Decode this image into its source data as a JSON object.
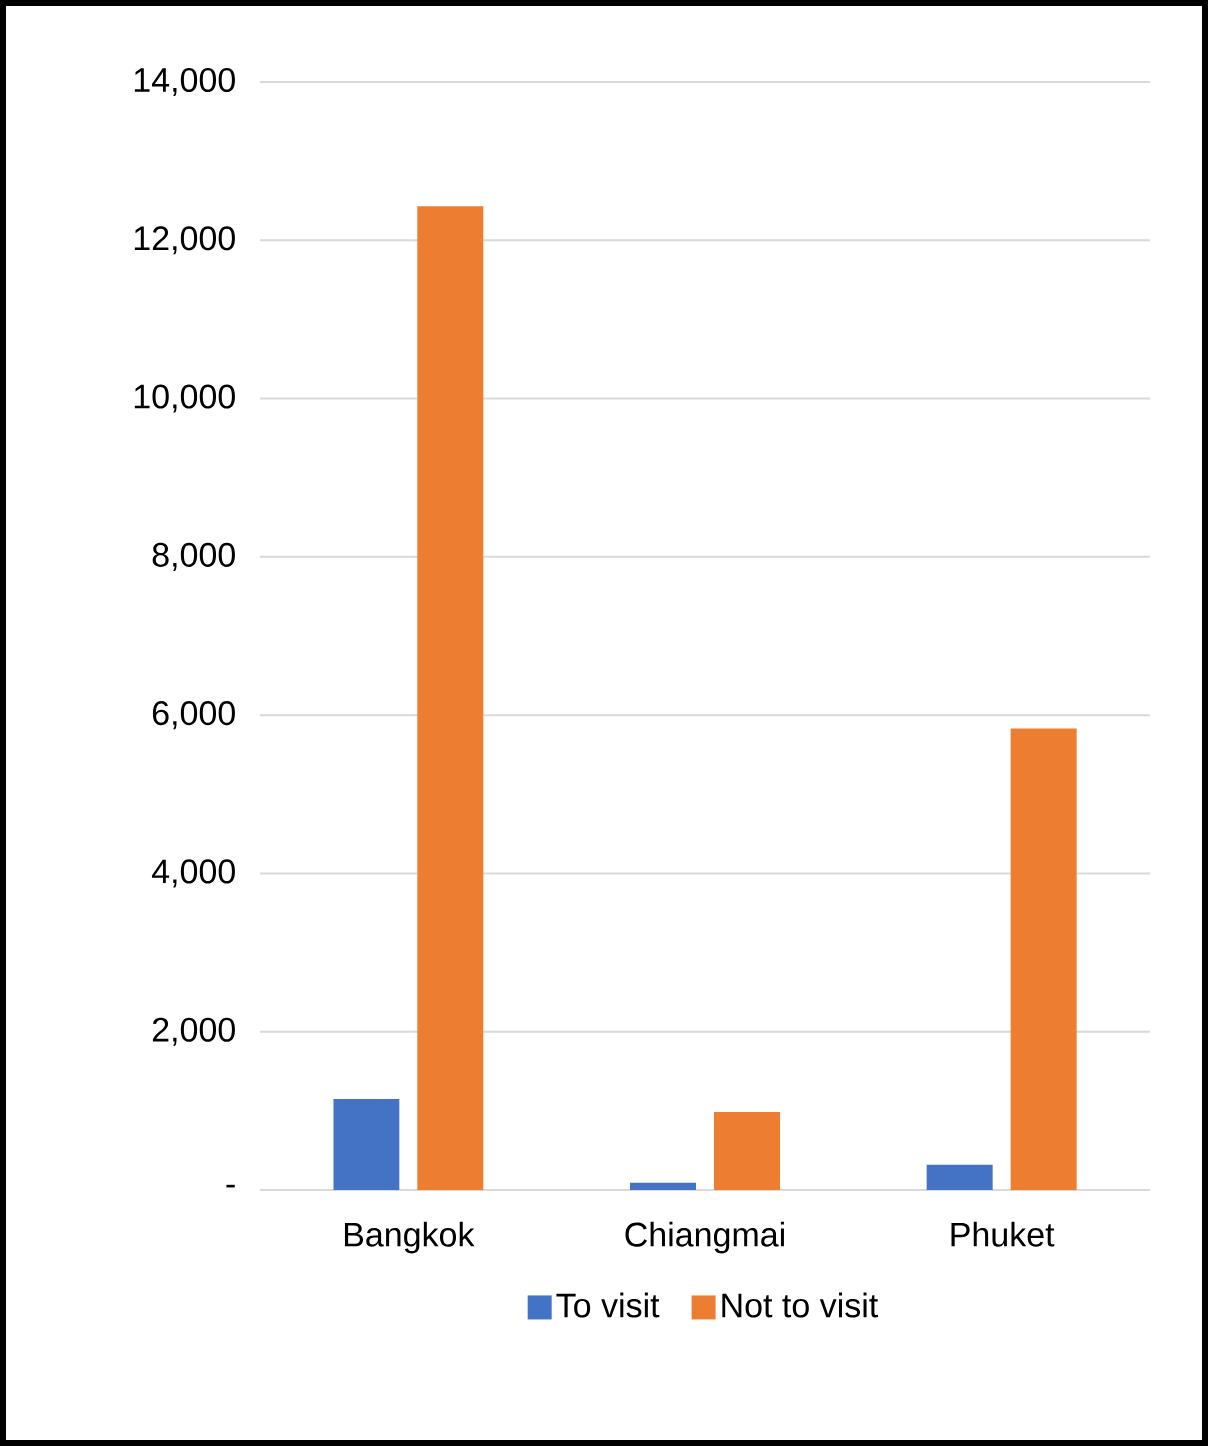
{
  "chart_data": {
    "type": "bar",
    "categories": [
      "Bangkok",
      "Chiangmai",
      "Phuket"
    ],
    "series": [
      {
        "name": "To visit",
        "color": "#4472c4",
        "values": [
          1150,
          90,
          320
        ]
      },
      {
        "name": "Not to visit",
        "color": "#ed7d31",
        "values": [
          12430,
          985,
          5830
        ]
      }
    ],
    "ylim": [
      0,
      14000
    ],
    "yticks": [
      {
        "value": 0,
        "label": "-"
      },
      {
        "value": 2000,
        "label": "2,000"
      },
      {
        "value": 4000,
        "label": "4,000"
      },
      {
        "value": 6000,
        "label": "6,000"
      },
      {
        "value": 8000,
        "label": "8,000"
      },
      {
        "value": 10000,
        "label": "10,000"
      },
      {
        "value": 12000,
        "label": "12,000"
      },
      {
        "value": 14000,
        "label": "14,000"
      }
    ],
    "grid": "y",
    "legend": "bottom"
  }
}
